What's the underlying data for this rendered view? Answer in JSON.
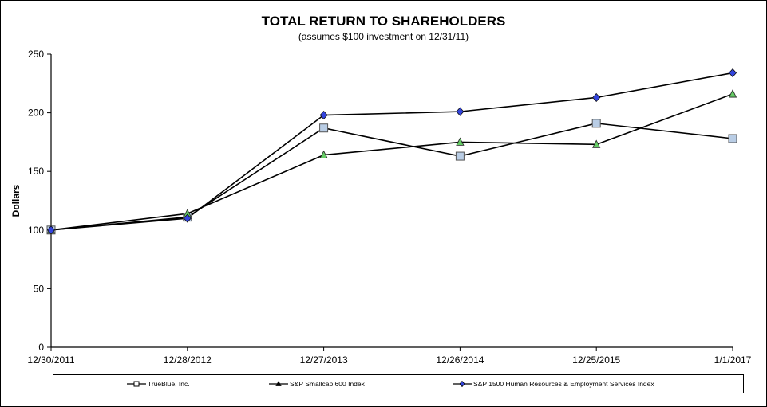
{
  "chart_data": {
    "type": "line",
    "title": "TOTAL RETURN TO SHAREHOLDERS",
    "subtitle": "(assumes $100 investment on 12/31/11)",
    "ylabel": "Dollars",
    "xlabel": "",
    "categories": [
      "12/30/2011",
      "12/28/2012",
      "12/27/2013",
      "12/26/2014",
      "12/25/2015",
      "1/1/2017"
    ],
    "ylim": [
      0,
      250
    ],
    "yticks": [
      "0",
      "50",
      "100",
      "150",
      "200",
      "250"
    ],
    "grid": false,
    "legend_position": "bottom",
    "series": [
      {
        "name": "TrueBlue, Inc.",
        "marker": "square",
        "marker_color": "#B9CDE5",
        "values": [
          100,
          111,
          187,
          163,
          191,
          178
        ]
      },
      {
        "name": "S&P Smallcap 600 Index",
        "marker": "triangle",
        "marker_color": "#66CC66",
        "values": [
          100,
          114,
          164,
          175,
          173,
          216
        ]
      },
      {
        "name": "S&P 1500 Human Resources & Employment Services Index",
        "marker": "diamond",
        "marker_color": "#3344DD",
        "values": [
          100,
          110,
          198,
          201,
          213,
          234
        ]
      }
    ]
  }
}
